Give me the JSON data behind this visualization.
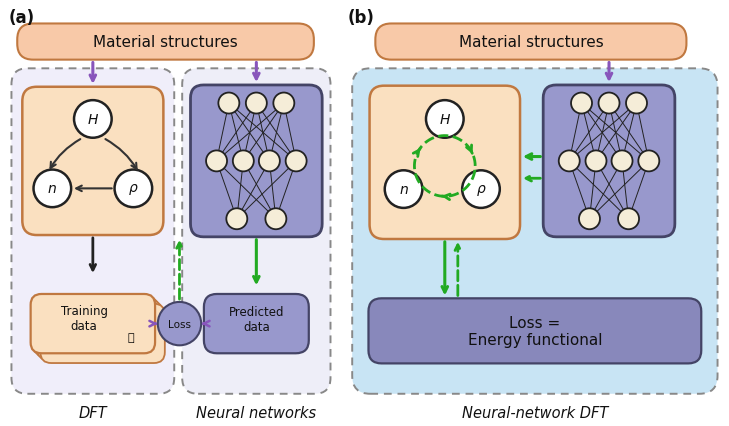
{
  "fig_width": 7.29,
  "fig_height": 4.27,
  "dpi": 100,
  "bg_color": "#ffffff",
  "salmon_box_fill": "#F8C9A8",
  "salmon_box_edge": "#C07840",
  "inner_orange_fill": "#FAE0C0",
  "inner_orange_edge": "#C07840",
  "dft_outer_fill": "#F0EEFA",
  "nn_outer_fill": "#EEEEF8",
  "nn_inner_fill": "#9898CC",
  "nn_inner_edge": "#444466",
  "node_fill_cream": "#F5EDD8",
  "node_white": "#FFFFFF",
  "node_edge": "#222222",
  "loss_circle_fill": "#9898CC",
  "loss_circle_edge": "#444466",
  "pred_box_fill": "#9898CC",
  "pred_box_edge": "#444466",
  "light_blue_fill": "#C8E4F4",
  "loss_energy_fill": "#8888BB",
  "loss_energy_edge": "#444466",
  "outer_edge_color": "#888888",
  "arrow_purple": "#8855BB",
  "arrow_green": "#22AA22",
  "arrow_black": "#222222",
  "text_dark": "#111111",
  "panel_a": "(a)",
  "panel_b": "(b)",
  "mat_struct_text": "Material structures",
  "dft_label": "DFT",
  "nn_label": "Neural networks",
  "nn_dft_label": "Neural-network DFT",
  "loss_text": "Loss",
  "predicted_text": "Predicted\ndata",
  "training_text": "Training\ndata",
  "loss_energy_text": "Loss =\nEnergy functional"
}
